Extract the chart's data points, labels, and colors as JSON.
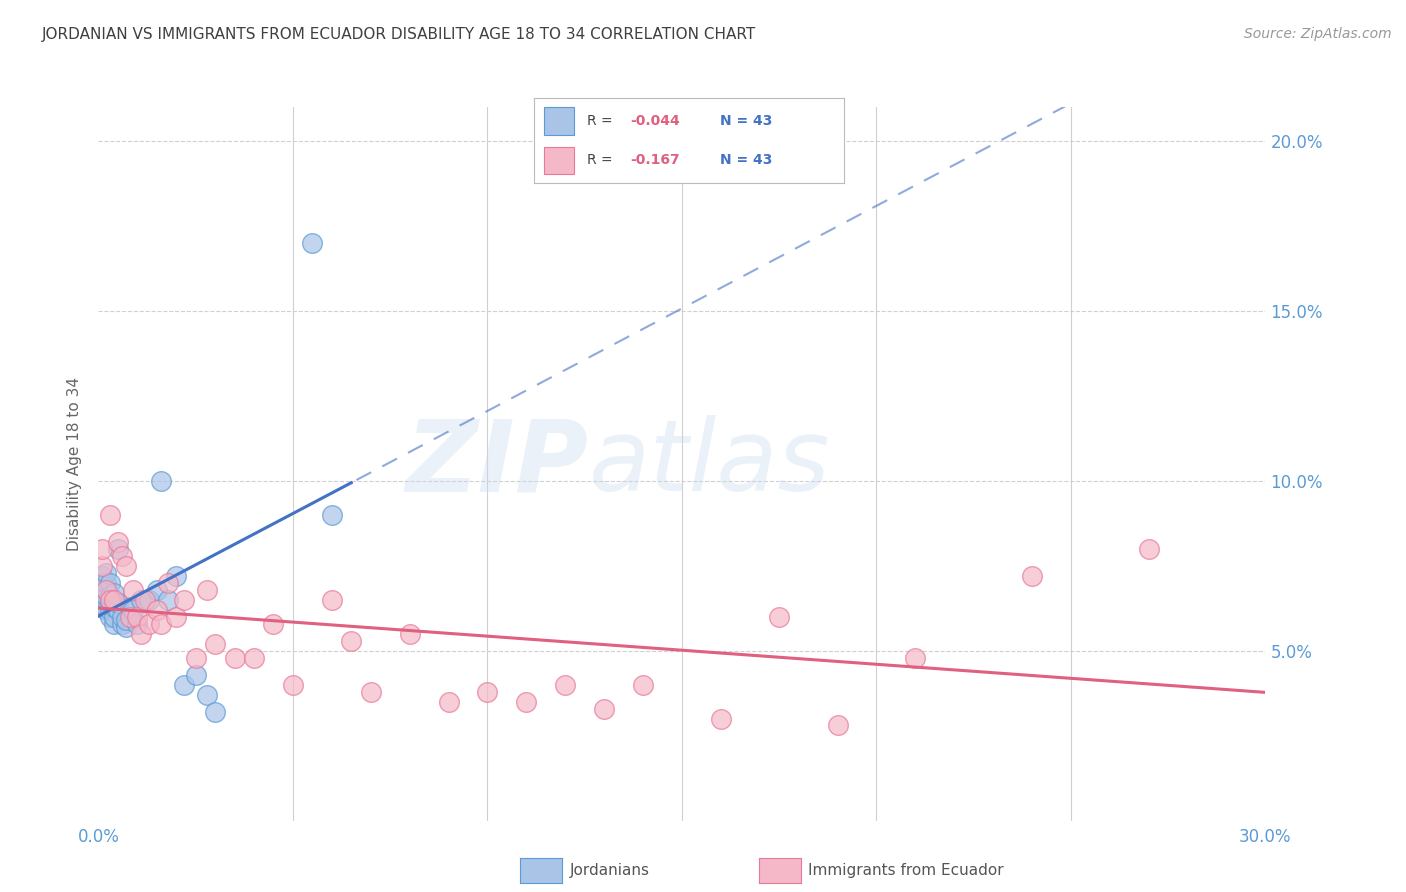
{
  "title": "JORDANIAN VS IMMIGRANTS FROM ECUADOR DISABILITY AGE 18 TO 34 CORRELATION CHART",
  "source": "Source: ZipAtlas.com",
  "ylabel": "Disability Age 18 to 34",
  "xlim": [
    0.0,
    0.3
  ],
  "ylim": [
    0.0,
    0.21
  ],
  "xticks": [
    0.0,
    0.05,
    0.1,
    0.15,
    0.2,
    0.25,
    0.3
  ],
  "ytick_positions": [
    0.05,
    0.1,
    0.15,
    0.2
  ],
  "ytick_labels": [
    "5.0%",
    "10.0%",
    "15.0%",
    "20.0%"
  ],
  "jordanians_color": "#aac4e8",
  "jordan_edge_color": "#5b9bd5",
  "ecuador_color": "#f4b8c8",
  "ecuador_edge_color": "#e8799a",
  "jordan_line_color": "#4472c4",
  "ecuador_line_color": "#e06080",
  "background_color": "#ffffff",
  "grid_color": "#d0d0d0",
  "axis_label_color": "#5b9bd5",
  "title_color": "#404040",
  "watermark_zip": "#c8d8f0",
  "watermark_atlas": "#c8d8f0",
  "legend_r1_color": "#e06080",
  "legend_n_color": "#4472c4",
  "jordanians_x": [
    0.001,
    0.001,
    0.001,
    0.001,
    0.001,
    0.002,
    0.002,
    0.002,
    0.002,
    0.002,
    0.002,
    0.002,
    0.003,
    0.003,
    0.003,
    0.003,
    0.003,
    0.004,
    0.004,
    0.004,
    0.004,
    0.005,
    0.005,
    0.005,
    0.006,
    0.006,
    0.007,
    0.007,
    0.008,
    0.009,
    0.01,
    0.011,
    0.013,
    0.015,
    0.016,
    0.018,
    0.02,
    0.022,
    0.025,
    0.028,
    0.03,
    0.055,
    0.06
  ],
  "jordanians_y": [
    0.065,
    0.067,
    0.068,
    0.07,
    0.072,
    0.062,
    0.063,
    0.065,
    0.066,
    0.068,
    0.07,
    0.073,
    0.06,
    0.062,
    0.064,
    0.066,
    0.07,
    0.058,
    0.06,
    0.063,
    0.067,
    0.062,
    0.064,
    0.08,
    0.058,
    0.06,
    0.057,
    0.059,
    0.063,
    0.062,
    0.058,
    0.065,
    0.065,
    0.068,
    0.1,
    0.065,
    0.072,
    0.04,
    0.043,
    0.037,
    0.032,
    0.17,
    0.09
  ],
  "ecuador_x": [
    0.001,
    0.001,
    0.002,
    0.003,
    0.003,
    0.004,
    0.005,
    0.006,
    0.007,
    0.008,
    0.009,
    0.01,
    0.011,
    0.012,
    0.013,
    0.015,
    0.016,
    0.018,
    0.02,
    0.022,
    0.025,
    0.028,
    0.03,
    0.035,
    0.04,
    0.045,
    0.05,
    0.06,
    0.065,
    0.07,
    0.08,
    0.09,
    0.1,
    0.11,
    0.12,
    0.13,
    0.14,
    0.16,
    0.175,
    0.19,
    0.21,
    0.24,
    0.27
  ],
  "ecuador_y": [
    0.075,
    0.08,
    0.068,
    0.065,
    0.09,
    0.065,
    0.082,
    0.078,
    0.075,
    0.06,
    0.068,
    0.06,
    0.055,
    0.065,
    0.058,
    0.062,
    0.058,
    0.07,
    0.06,
    0.065,
    0.048,
    0.068,
    0.052,
    0.048,
    0.048,
    0.058,
    0.04,
    0.065,
    0.053,
    0.038,
    0.055,
    0.035,
    0.038,
    0.035,
    0.04,
    0.033,
    0.04,
    0.03,
    0.06,
    0.028,
    0.048,
    0.072,
    0.08
  ]
}
